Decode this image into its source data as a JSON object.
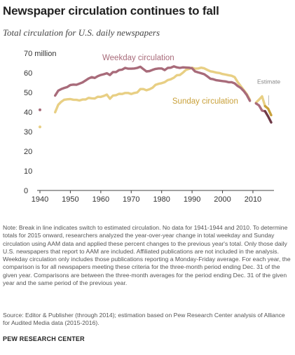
{
  "title": "Newspaper circulation continues to fall",
  "subtitle": "Total circulation for U.S. daily newspapers",
  "note": "Note: Break in line indicates switch to estimated circulation. No data for 1941-1944 and 2010. To determine totals for 2015 onward, researchers analyzed the year-over-year change in total weekday and Sunday circulation using AAM data and applied these percent changes to the previous year's total. Only those daily U.S. newspapers that report to AAM are included. Affiliated publications are not included in the analysis. Weekday circulation only includes those publications reporting a Monday-Friday average. For each year, the comparison is for all newspapers meeting these criteria for the three-month period ending Dec. 31 of the given year. Comparisons are between the three-month averages for the period ending Dec. 31 of the given year and the same period of the previous year.",
  "source": "Source: Editor & Publisher (through 2014); estimation based on Pew Research Center analysis of Alliance for Audited Media data (2015-2016).",
  "brand": "PEW RESEARCH CENTER",
  "chart_data": {
    "type": "line",
    "title": "Newspaper circulation continues to fall",
    "subtitle": "Total circulation for U.S. daily newspapers",
    "y_unit_label": "70 million",
    "ylim": [
      0,
      70
    ],
    "y_ticks": [
      0,
      10,
      20,
      30,
      40,
      50,
      60,
      70
    ],
    "xlim": [
      1940,
      2016
    ],
    "x_ticks": [
      1940,
      1950,
      1960,
      1970,
      1980,
      1990,
      2000,
      2010
    ],
    "grid": false,
    "annotation": "Estimate",
    "colors": {
      "weekday": "#a86b7a",
      "weekday_estimate": "#6e3a47",
      "sunday": "#e8cf84",
      "sunday_estimate": "#c9a13b",
      "axis": "#444444"
    },
    "series": [
      {
        "name": "Weekday circulation",
        "key": "weekday",
        "segments": [
          [
            [
              1940,
              41.1
            ]
          ],
          [
            [
              1945,
              48.4
            ],
            [
              1946,
              50.9
            ],
            [
              1947,
              51.7
            ],
            [
              1948,
              52.3
            ],
            [
              1949,
              52.8
            ],
            [
              1950,
              53.8
            ],
            [
              1951,
              54.0
            ],
            [
              1952,
              53.9
            ],
            [
              1953,
              54.5
            ],
            [
              1954,
              55.1
            ],
            [
              1955,
              56.1
            ],
            [
              1956,
              57.1
            ],
            [
              1957,
              57.8
            ],
            [
              1958,
              57.4
            ],
            [
              1959,
              58.3
            ],
            [
              1960,
              58.9
            ],
            [
              1961,
              59.3
            ],
            [
              1962,
              59.8
            ],
            [
              1963,
              58.9
            ],
            [
              1964,
              60.4
            ],
            [
              1965,
              60.4
            ],
            [
              1966,
              61.4
            ],
            [
              1967,
              61.6
            ],
            [
              1968,
              62.5
            ],
            [
              1969,
              62.1
            ],
            [
              1970,
              62.1
            ],
            [
              1971,
              62.2
            ],
            [
              1972,
              62.5
            ],
            [
              1973,
              63.1
            ],
            [
              1974,
              61.9
            ],
            [
              1975,
              60.7
            ],
            [
              1976,
              60.9
            ],
            [
              1977,
              61.5
            ],
            [
              1978,
              62.0
            ],
            [
              1979,
              62.2
            ],
            [
              1980,
              62.2
            ],
            [
              1981,
              61.4
            ],
            [
              1982,
              62.5
            ],
            [
              1983,
              62.6
            ],
            [
              1984,
              63.3
            ],
            [
              1985,
              62.8
            ],
            [
              1986,
              62.5
            ],
            [
              1987,
              62.8
            ],
            [
              1988,
              62.7
            ],
            [
              1989,
              62.6
            ],
            [
              1990,
              62.3
            ],
            [
              1991,
              60.7
            ],
            [
              1992,
              60.2
            ],
            [
              1993,
              59.8
            ],
            [
              1994,
              59.3
            ],
            [
              1995,
              58.2
            ],
            [
              1996,
              57.0
            ],
            [
              1997,
              56.7
            ],
            [
              1998,
              56.2
            ],
            [
              1999,
              56.0
            ],
            [
              2000,
              55.8
            ],
            [
              2001,
              55.6
            ],
            [
              2002,
              55.2
            ],
            [
              2003,
              55.2
            ],
            [
              2004,
              54.6
            ],
            [
              2005,
              53.3
            ],
            [
              2006,
              52.3
            ],
            [
              2007,
              50.7
            ],
            [
              2008,
              48.6
            ],
            [
              2009,
              45.7
            ]
          ],
          [
            [
              2011,
              44.4
            ],
            [
              2012,
              43.4
            ],
            [
              2013,
              40.7
            ],
            [
              2014,
              40.4
            ]
          ]
        ],
        "estimate": [
          [
            2014,
            40.4
          ],
          [
            2015,
            37.7
          ],
          [
            2016,
            34.7
          ]
        ]
      },
      {
        "name": "Sunday circulation",
        "key": "sunday",
        "segments": [
          [
            [
              1940,
              32.4
            ]
          ],
          [
            [
              1945,
              39.9
            ],
            [
              1946,
              43.7
            ],
            [
              1947,
              45.2
            ],
            [
              1948,
              46.3
            ],
            [
              1949,
              46.5
            ],
            [
              1950,
              46.6
            ],
            [
              1951,
              46.3
            ],
            [
              1952,
              46.2
            ],
            [
              1953,
              45.9
            ],
            [
              1954,
              46.4
            ],
            [
              1955,
              46.4
            ],
            [
              1956,
              47.2
            ],
            [
              1957,
              47.0
            ],
            [
              1958,
              46.9
            ],
            [
              1959,
              47.8
            ],
            [
              1960,
              47.7
            ],
            [
              1961,
              48.2
            ],
            [
              1962,
              48.9
            ],
            [
              1963,
              46.8
            ],
            [
              1964,
              48.4
            ],
            [
              1965,
              48.6
            ],
            [
              1966,
              49.3
            ],
            [
              1967,
              49.2
            ],
            [
              1968,
              49.7
            ],
            [
              1969,
              49.7
            ],
            [
              1970,
              49.2
            ],
            [
              1971,
              49.7
            ],
            [
              1972,
              50.0
            ],
            [
              1973,
              51.7
            ],
            [
              1974,
              51.7
            ],
            [
              1975,
              51.1
            ],
            [
              1976,
              51.6
            ],
            [
              1977,
              52.4
            ],
            [
              1978,
              53.9
            ],
            [
              1979,
              54.4
            ],
            [
              1980,
              54.7
            ],
            [
              1981,
              55.2
            ],
            [
              1982,
              56.3
            ],
            [
              1983,
              56.7
            ],
            [
              1984,
              57.5
            ],
            [
              1985,
              58.8
            ],
            [
              1986,
              58.9
            ],
            [
              1987,
              60.1
            ],
            [
              1988,
              61.5
            ],
            [
              1989,
              62.0
            ],
            [
              1990,
              62.6
            ],
            [
              1991,
              62.1
            ],
            [
              1992,
              62.2
            ],
            [
              1993,
              62.6
            ],
            [
              1994,
              62.3
            ],
            [
              1995,
              61.5
            ],
            [
              1996,
              60.8
            ],
            [
              1997,
              60.5
            ],
            [
              1998,
              60.1
            ],
            [
              1999,
              59.9
            ],
            [
              2000,
              59.4
            ],
            [
              2001,
              59.1
            ],
            [
              2002,
              58.8
            ],
            [
              2003,
              58.5
            ],
            [
              2004,
              57.8
            ],
            [
              2005,
              55.3
            ],
            [
              2006,
              53.2
            ],
            [
              2007,
              51.2
            ],
            [
              2008,
              49.1
            ],
            [
              2009,
              46.2
            ]
          ],
          [
            [
              2011,
              44.8
            ],
            [
              2012,
              46.3
            ],
            [
              2013,
              48.0
            ],
            [
              2014,
              43.0
            ]
          ]
        ],
        "estimate": [
          [
            2014,
            43.0
          ],
          [
            2015,
            41.7
          ],
          [
            2016,
            38.4
          ]
        ]
      }
    ]
  }
}
